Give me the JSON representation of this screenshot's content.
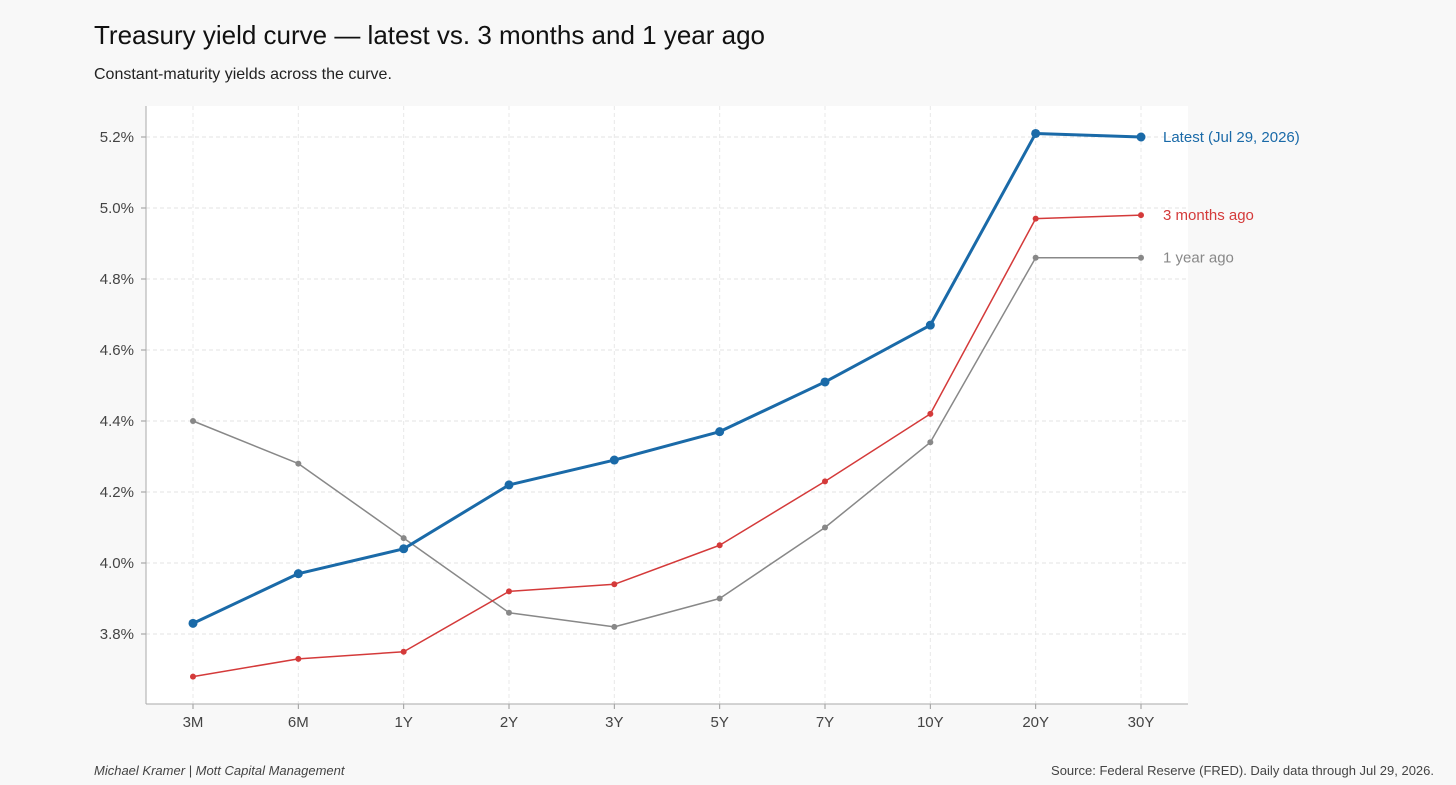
{
  "header": {
    "title": "Treasury yield curve — latest vs. 3 months and 1 year ago",
    "subtitle": "Constant-maturity yields across the curve."
  },
  "footer": {
    "author": "Michael Kramer  |  Mott Capital Management",
    "source": "Source: Federal Reserve (FRED). Daily data through Jul 29, 2026."
  },
  "chart_data": {
    "type": "line",
    "title": "Treasury yield curve — latest vs. 3 months and 1 year ago",
    "subtitle": "Constant-maturity yields across the curve.",
    "xlabel": "",
    "ylabel": "",
    "categories": [
      "3M",
      "6M",
      "1Y",
      "2Y",
      "3Y",
      "5Y",
      "7Y",
      "10Y",
      "20Y",
      "30Y"
    ],
    "ylim": [
      3.6,
      5.29
    ],
    "yticks": [
      3.8,
      4.0,
      4.2,
      4.4,
      4.6,
      4.8,
      5.0,
      5.2
    ],
    "ytick_labels": [
      "3.8%",
      "4.0%",
      "4.2%",
      "4.4%",
      "4.6%",
      "4.8%",
      "5.0%",
      "5.2%"
    ],
    "grid": true,
    "legend": "direct labels at right end of lines",
    "series": [
      {
        "name": "Latest (Jul 29, 2026)",
        "color": "#1a6aa8",
        "emphasis": "bold",
        "values": [
          3.83,
          3.97,
          4.04,
          4.22,
          4.29,
          4.37,
          4.51,
          4.67,
          5.21,
          5.2
        ]
      },
      {
        "name": "3 months ago",
        "color": "#d43a3a",
        "emphasis": "thin",
        "values": [
          3.68,
          3.73,
          3.75,
          3.92,
          3.94,
          4.05,
          4.23,
          4.42,
          4.97,
          4.98
        ]
      },
      {
        "name": "1 year ago",
        "color": "#888888",
        "emphasis": "thin",
        "values": [
          4.4,
          4.28,
          4.07,
          3.86,
          3.82,
          3.9,
          4.1,
          4.34,
          4.86,
          4.86
        ]
      }
    ]
  }
}
